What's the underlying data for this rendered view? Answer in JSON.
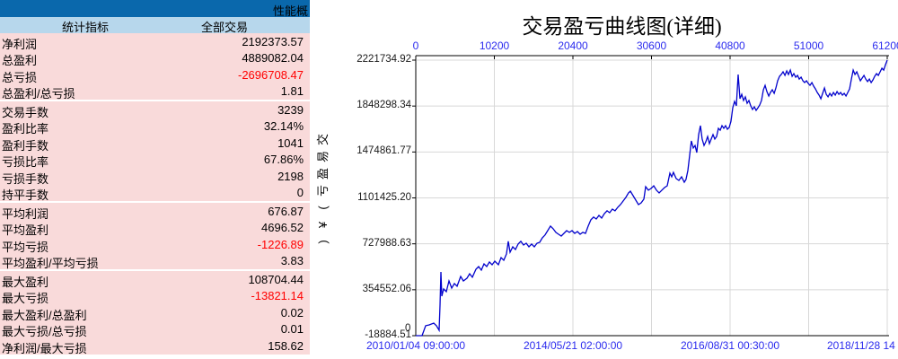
{
  "panel": {
    "titlebar_text": "性能概",
    "table": {
      "col1_header": "统计指标",
      "col2_header": "全部交易",
      "groups": [
        [
          {
            "label": "净利润",
            "value": "2192373.57",
            "neg": false
          },
          {
            "label": "总盈利",
            "value": "4889082.04",
            "neg": false
          },
          {
            "label": "总亏损",
            "value": "-2696708.47",
            "neg": true
          },
          {
            "label": "总盈利/总亏损",
            "value": "1.81",
            "neg": false
          }
        ],
        [
          {
            "label": "交易手数",
            "value": "3239",
            "neg": false
          },
          {
            "label": "盈利比率",
            "value": "32.14%",
            "neg": false
          },
          {
            "label": "盈利手数",
            "value": "1041",
            "neg": false
          },
          {
            "label": "亏损比率",
            "value": "67.86%",
            "neg": false
          },
          {
            "label": "亏损手数",
            "value": "2198",
            "neg": false
          },
          {
            "label": "持平手数",
            "value": "0",
            "neg": false
          }
        ],
        [
          {
            "label": "平均利润",
            "value": "676.87",
            "neg": false
          },
          {
            "label": "平均盈利",
            "value": "4696.52",
            "neg": false
          },
          {
            "label": "平均亏损",
            "value": "-1226.89",
            "neg": true
          },
          {
            "label": "平均盈利/平均亏损",
            "value": "3.83",
            "neg": false
          }
        ],
        [
          {
            "label": "最大盈利",
            "value": "108704.44",
            "neg": false
          },
          {
            "label": "最大亏损",
            "value": "-13821.14",
            "neg": true
          },
          {
            "label": "最大盈利/总盈利",
            "value": "0.02",
            "neg": false
          },
          {
            "label": "最大亏损/总亏损",
            "value": "0.01",
            "neg": false
          },
          {
            "label": "净利润/最大亏损",
            "value": "158.62",
            "neg": false
          }
        ]
      ]
    },
    "colors": {
      "titlebar_bg": "#0a68ac",
      "header_bg": "#b7d7ec",
      "row_bg": "#f9dada",
      "negative": "#ff0000"
    }
  },
  "chart_data": {
    "type": "line",
    "title": "交易盈亏曲线图(详细)",
    "ylabel": "交易盈亏(¥)",
    "origin_label": "0",
    "x_ticks_top": [
      "0",
      "10200",
      "20400",
      "30600",
      "40800",
      "51000",
      "61200"
    ],
    "y_ticks": [
      "2221734.92",
      "1848298.34",
      "1474861.77",
      "1101425.20",
      "727988.63",
      "354552.06",
      "-18884.51"
    ],
    "x_ticks_bottom": [
      "2010/01/04 09:00:00",
      "2014/05/21 02:00:00",
      "2016/08/31 00:30:00",
      "2018/11/28 14"
    ],
    "xlim": [
      0,
      61200
    ],
    "ylim": [
      -18884.51,
      2221734.92
    ],
    "grid": true,
    "line_color": "#0202cc",
    "tick_label_color": "#2b2bee",
    "points": [
      [
        0,
        -18885
      ],
      [
        820,
        -18885
      ],
      [
        1280,
        62000
      ],
      [
        1750,
        69000
      ],
      [
        2330,
        83000
      ],
      [
        2680,
        62000
      ],
      [
        3030,
        25000
      ],
      [
        3150,
        229000
      ],
      [
        3260,
        499000
      ],
      [
        3380,
        302000
      ],
      [
        3610,
        361000
      ],
      [
        3960,
        339000
      ],
      [
        4310,
        426000
      ],
      [
        4660,
        368000
      ],
      [
        5010,
        405000
      ],
      [
        5360,
        383000
      ],
      [
        5830,
        463000
      ],
      [
        6180,
        426000
      ],
      [
        6640,
        448000
      ],
      [
        6990,
        485000
      ],
      [
        7340,
        456000
      ],
      [
        7810,
        521000
      ],
      [
        8160,
        543000
      ],
      [
        8510,
        514000
      ],
      [
        8860,
        565000
      ],
      [
        9210,
        543000
      ],
      [
        9560,
        580000
      ],
      [
        9910,
        558000
      ],
      [
        10260,
        587000
      ],
      [
        10720,
        558000
      ],
      [
        11070,
        616000
      ],
      [
        11420,
        594000
      ],
      [
        11770,
        645000
      ],
      [
        12010,
        748000
      ],
      [
        12240,
        660000
      ],
      [
        12590,
        704000
      ],
      [
        12940,
        682000
      ],
      [
        13290,
        726000
      ],
      [
        13640,
        748000
      ],
      [
        13990,
        718000
      ],
      [
        14340,
        733000
      ],
      [
        14690,
        704000
      ],
      [
        15040,
        726000
      ],
      [
        15390,
        704000
      ],
      [
        15740,
        733000
      ],
      [
        16090,
        740000
      ],
      [
        16430,
        777000
      ],
      [
        16780,
        799000
      ],
      [
        17130,
        835000
      ],
      [
        17480,
        872000
      ],
      [
        17830,
        850000
      ],
      [
        18180,
        821000
      ],
      [
        18530,
        806000
      ],
      [
        18880,
        791000
      ],
      [
        19230,
        813000
      ],
      [
        19580,
        835000
      ],
      [
        19930,
        821000
      ],
      [
        20280,
        835000
      ],
      [
        20630,
        813000
      ],
      [
        20980,
        828000
      ],
      [
        21330,
        806000
      ],
      [
        21680,
        821000
      ],
      [
        22030,
        813000
      ],
      [
        22380,
        872000
      ],
      [
        22730,
        923000
      ],
      [
        23080,
        945000
      ],
      [
        23430,
        930000
      ],
      [
        23780,
        959000
      ],
      [
        24130,
        937000
      ],
      [
        24480,
        974000
      ],
      [
        24830,
        996000
      ],
      [
        25170,
        981000
      ],
      [
        25520,
        1010000
      ],
      [
        25870,
        996000
      ],
      [
        26220,
        1025000
      ],
      [
        26570,
        1047000
      ],
      [
        26920,
        1076000
      ],
      [
        27270,
        1105000
      ],
      [
        27620,
        1142000
      ],
      [
        27860,
        1156000
      ],
      [
        28210,
        1120000
      ],
      [
        28560,
        1083000
      ],
      [
        28910,
        1047000
      ],
      [
        29260,
        1061000
      ],
      [
        29610,
        1091000
      ],
      [
        29840,
        1193000
      ],
      [
        30190,
        1164000
      ],
      [
        30540,
        1178000
      ],
      [
        30890,
        1200000
      ],
      [
        31240,
        1164000
      ],
      [
        31590,
        1142000
      ],
      [
        31940,
        1164000
      ],
      [
        32290,
        1185000
      ],
      [
        32640,
        1200000
      ],
      [
        32990,
        1302000
      ],
      [
        33220,
        1273000
      ],
      [
        33450,
        1309000
      ],
      [
        33800,
        1258000
      ],
      [
        34150,
        1244000
      ],
      [
        34500,
        1273000
      ],
      [
        34850,
        1229000
      ],
      [
        35080,
        1251000
      ],
      [
        35320,
        1324000
      ],
      [
        35550,
        1448000
      ],
      [
        35780,
        1565000
      ],
      [
        36020,
        1507000
      ],
      [
        36250,
        1528000
      ],
      [
        36480,
        1470000
      ],
      [
        36720,
        1616000
      ],
      [
        36950,
        1689000
      ],
      [
        37180,
        1580000
      ],
      [
        37420,
        1528000
      ],
      [
        37650,
        1558000
      ],
      [
        37880,
        1601000
      ],
      [
        38120,
        1543000
      ],
      [
        38350,
        1580000
      ],
      [
        38580,
        1616000
      ],
      [
        38820,
        1580000
      ],
      [
        39050,
        1601000
      ],
      [
        39280,
        1667000
      ],
      [
        39520,
        1652000
      ],
      [
        39750,
        1689000
      ],
      [
        39980,
        1667000
      ],
      [
        40220,
        1689000
      ],
      [
        40450,
        1660000
      ],
      [
        40680,
        1674000
      ],
      [
        40920,
        1725000
      ],
      [
        41150,
        1835000
      ],
      [
        41380,
        1886000
      ],
      [
        41620,
        1850000
      ],
      [
        41850,
        2105000
      ],
      [
        42080,
        1908000
      ],
      [
        42320,
        1944000
      ],
      [
        42550,
        1893000
      ],
      [
        42780,
        1923000
      ],
      [
        43020,
        1871000
      ],
      [
        43250,
        1893000
      ],
      [
        43480,
        1850000
      ],
      [
        43720,
        1820000
      ],
      [
        43950,
        1842000
      ],
      [
        44180,
        1813000
      ],
      [
        44420,
        1835000
      ],
      [
        44650,
        1857000
      ],
      [
        44880,
        1893000
      ],
      [
        45120,
        1981000
      ],
      [
        45350,
        2017000
      ],
      [
        45580,
        1966000
      ],
      [
        45820,
        1930000
      ],
      [
        46050,
        1959000
      ],
      [
        46280,
        1981000
      ],
      [
        46520,
        1952000
      ],
      [
        46750,
        1995000
      ],
      [
        46980,
        2054000
      ],
      [
        47220,
        2090000
      ],
      [
        47450,
        2105000
      ],
      [
        47680,
        2127000
      ],
      [
        47920,
        2098000
      ],
      [
        48150,
        2134000
      ],
      [
        48380,
        2105000
      ],
      [
        48620,
        2141000
      ],
      [
        48850,
        2090000
      ],
      [
        49080,
        2112000
      ],
      [
        49320,
        2083000
      ],
      [
        49550,
        2098000
      ],
      [
        49780,
        2068000
      ],
      [
        50020,
        2083000
      ],
      [
        50250,
        2054000
      ],
      [
        50480,
        2039000
      ],
      [
        50720,
        2054000
      ],
      [
        50950,
        2032000
      ],
      [
        51180,
        2017000
      ],
      [
        51420,
        2039000
      ],
      [
        51650,
        2010000
      ],
      [
        51880,
        1988000
      ],
      [
        52120,
        1959000
      ],
      [
        52350,
        1937000
      ],
      [
        52580,
        1908000
      ],
      [
        52820,
        1952000
      ],
      [
        53050,
        1995000
      ],
      [
        53280,
        1944000
      ],
      [
        53520,
        1923000
      ],
      [
        53750,
        1952000
      ],
      [
        53980,
        1930000
      ],
      [
        54220,
        1959000
      ],
      [
        54450,
        1937000
      ],
      [
        54680,
        1966000
      ],
      [
        54920,
        1944000
      ],
      [
        55150,
        1959000
      ],
      [
        55380,
        1937000
      ],
      [
        55620,
        1952000
      ],
      [
        55850,
        1930000
      ],
      [
        56080,
        1959000
      ],
      [
        56320,
        1988000
      ],
      [
        56550,
        2068000
      ],
      [
        56780,
        2141000
      ],
      [
        57020,
        2105000
      ],
      [
        57250,
        2127000
      ],
      [
        57480,
        2090000
      ],
      [
        57710,
        2054000
      ],
      [
        57950,
        2076000
      ],
      [
        58180,
        2098000
      ],
      [
        58410,
        2068000
      ],
      [
        58650,
        2047000
      ],
      [
        58880,
        2068000
      ],
      [
        59110,
        2039000
      ],
      [
        59350,
        2061000
      ],
      [
        59580,
        2090000
      ],
      [
        59810,
        2112000
      ],
      [
        60050,
        2098000
      ],
      [
        60280,
        2127000
      ],
      [
        60510,
        2156000
      ],
      [
        60750,
        2141000
      ],
      [
        60980,
        2185000
      ],
      [
        61200,
        2221735
      ]
    ]
  }
}
